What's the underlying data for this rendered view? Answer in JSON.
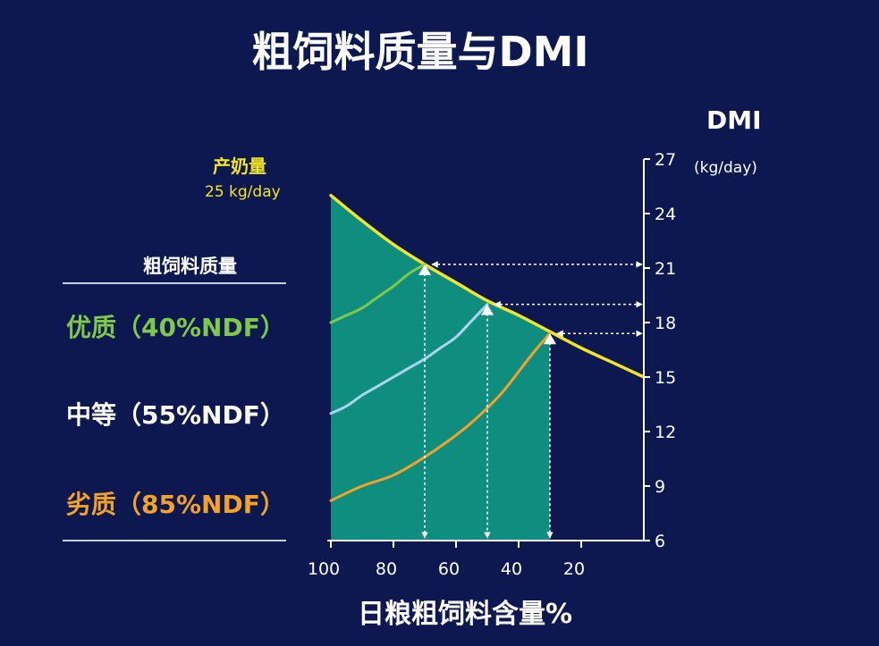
{
  "title": "粗饲料质量与DMI",
  "dmi_label": "DMI",
  "dmi_unit": "(kg/day)",
  "milk_label": "产奶量",
  "milk_value": "25 kg/day",
  "legend": {
    "title": "粗饲料质量",
    "items": [
      {
        "label": "优质（40%NDF）",
        "color": "#7ec94b"
      },
      {
        "label": "中等（55%NDF）",
        "color": "#ffffff"
      },
      {
        "label": "劣质（85%NDF）",
        "color": "#f3a228"
      }
    ]
  },
  "colors": {
    "background": "#0e1850",
    "fill_area": "#0f8e80",
    "yellow": "#f2e526",
    "green": "#7ec94b",
    "lightblue": "#a9d4f0",
    "orange": "#f3a228"
  },
  "chart_data": {
    "type": "line",
    "title": "粗饲料质量与DMI",
    "xlabel": "日粮粗饲料含量%",
    "ylabel": "DMI (kg/day)",
    "x_ticks": [
      "100",
      "80",
      "60",
      "40",
      "20"
    ],
    "x_tick_values": [
      100,
      80,
      60,
      40,
      20
    ],
    "y_ticks": [
      "6",
      "9",
      "12",
      "15",
      "18",
      "21",
      "24",
      "27"
    ],
    "y_tick_values": [
      6,
      9,
      12,
      15,
      18,
      21,
      24,
      27
    ],
    "xlim": [
      100,
      0
    ],
    "ylim": [
      6,
      27
    ],
    "series": [
      {
        "name": "产奶量 25 kg/day",
        "color": "#f2e526",
        "x": [
          100,
          90,
          80,
          70,
          60,
          50,
          40,
          30,
          20,
          10,
          0
        ],
        "y": [
          25.0,
          23.6,
          22.3,
          21.2,
          20.2,
          19.2,
          18.4,
          17.5,
          16.6,
          15.8,
          15.0
        ]
      },
      {
        "name": "优质（40%NDF）",
        "color": "#7ec94b",
        "x": [
          100,
          95,
          90,
          85,
          80,
          75,
          70
        ],
        "y": [
          18.0,
          18.4,
          18.8,
          19.4,
          20.0,
          20.7,
          21.2
        ]
      },
      {
        "name": "中等（55%NDF）",
        "color": "#a9d4f0",
        "x": [
          100,
          95,
          90,
          85,
          80,
          75,
          70,
          65,
          60,
          55,
          50
        ],
        "y": [
          13.0,
          13.4,
          14.0,
          14.5,
          15.0,
          15.5,
          16.0,
          16.6,
          17.2,
          18.1,
          19.0
        ]
      },
      {
        "name": "劣质（85%NDF）",
        "color": "#f3a228",
        "x": [
          100,
          90,
          80,
          70,
          60,
          55,
          50,
          45,
          40,
          35,
          30
        ],
        "y": [
          8.2,
          9.0,
          9.6,
          10.6,
          11.8,
          12.5,
          13.3,
          14.2,
          15.3,
          16.4,
          17.4
        ]
      }
    ],
    "annotations": [
      {
        "x": 70,
        "y": 21.2
      },
      {
        "x": 50,
        "y": 19.0
      },
      {
        "x": 30,
        "y": 17.4
      }
    ]
  }
}
